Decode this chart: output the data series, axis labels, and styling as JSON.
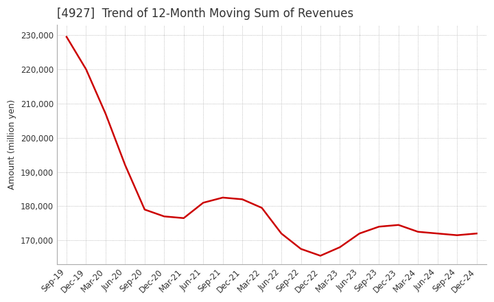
{
  "title": "[4927]  Trend of 12-Month Moving Sum of Revenues",
  "ylabel": "Amount (million yen)",
  "x_labels": [
    "Sep-19",
    "Dec-19",
    "Mar-20",
    "Jun-20",
    "Sep-20",
    "Dec-20",
    "Mar-21",
    "Jun-21",
    "Sep-21",
    "Dec-21",
    "Mar-22",
    "Jun-22",
    "Sep-22",
    "Dec-22",
    "Mar-23",
    "Jun-23",
    "Sep-23",
    "Dec-23",
    "Mar-24",
    "Jun-24",
    "Sep-24",
    "Dec-24"
  ],
  "values": [
    229500,
    220000,
    207000,
    192000,
    179000,
    177000,
    176500,
    181000,
    182500,
    182000,
    179500,
    172000,
    167500,
    165500,
    168000,
    172000,
    174000,
    174500,
    172500,
    172000,
    171500,
    172000
  ],
  "line_color": "#cc0000",
  "ylim_min": 163000,
  "ylim_max": 233000,
  "yticks": [
    170000,
    180000,
    190000,
    200000,
    210000,
    220000,
    230000
  ],
  "background_color": "#ffffff",
  "grid_color": "#aaaaaa",
  "title_fontsize": 12,
  "label_fontsize": 9,
  "tick_fontsize": 8.5
}
